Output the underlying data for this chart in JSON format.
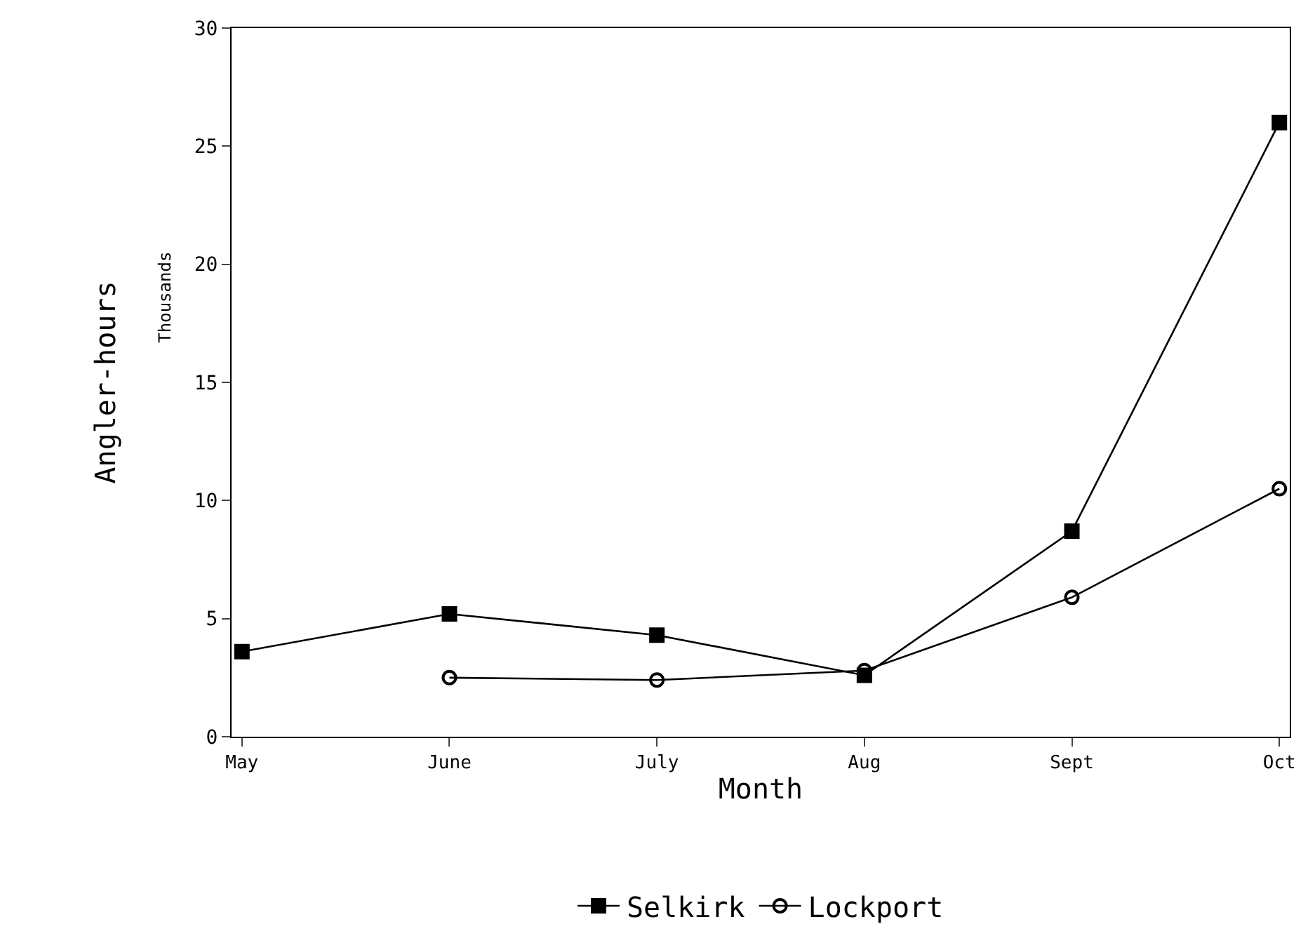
{
  "chart_data": {
    "type": "line",
    "xlabel": "Month",
    "ylabel": "Angler-hours",
    "annotations": [
      "Thousands"
    ],
    "categories": [
      "May",
      "June",
      "July",
      "Aug",
      "Sept",
      "Oct"
    ],
    "series": [
      {
        "name": "Selkirk",
        "color": "#000000",
        "marker": "square",
        "values": [
          3.6,
          5.2,
          4.3,
          2.6,
          8.7,
          26
        ]
      },
      {
        "name": "Lockport",
        "color": "#000000",
        "marker": "circle",
        "values": [
          null,
          2.5,
          2.4,
          2.8,
          5.9,
          10.5
        ]
      }
    ],
    "ylim": [
      0,
      30
    ],
    "yticks": [
      0,
      5,
      10,
      15,
      20,
      25,
      30
    ],
    "grid": false,
    "legend": "bottom",
    "line_style": "solid"
  }
}
